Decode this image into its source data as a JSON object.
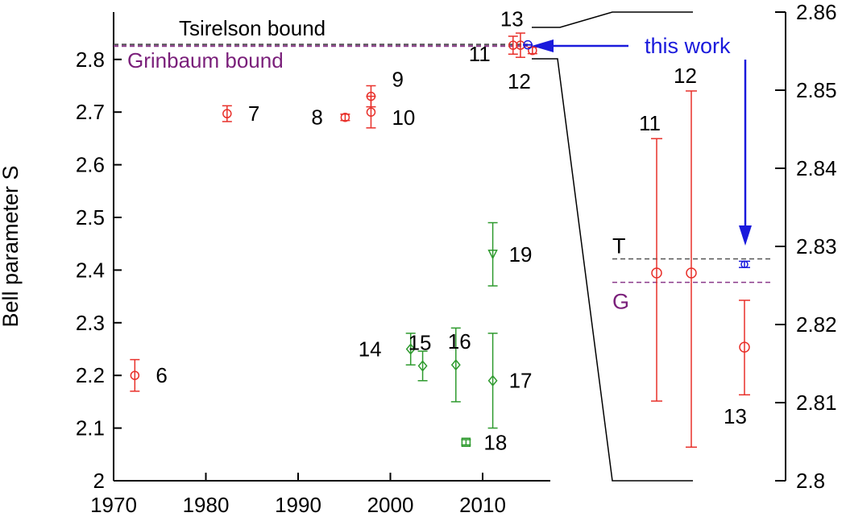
{
  "chart_data": {
    "type": "scatter",
    "ylabel": "Bell parameter S",
    "main": {
      "xlim": [
        1970,
        2018.5
      ],
      "ylim": [
        2.0,
        2.89
      ],
      "xticks": [
        "1970",
        "1980",
        "1990",
        "2000",
        "2010"
      ],
      "yticks": [
        "2",
        "2.1",
        "2.2",
        "2.3",
        "2.4",
        "2.5",
        "2.6",
        "2.7",
        "2.8"
      ],
      "bounds": [
        {
          "name": "Tsirelson bound",
          "value": 2.8284,
          "color": "#555555"
        },
        {
          "name": "Grinbaum bound",
          "value": 2.8254,
          "color": "#8b3a8b"
        }
      ],
      "points": [
        {
          "label": "6",
          "x": 1972.3,
          "y": 2.2,
          "err": 0.03,
          "marker": "circle",
          "color": "#e8302a"
        },
        {
          "label": "7",
          "x": 1982.3,
          "y": 2.697,
          "err": 0.015,
          "marker": "circle",
          "color": "#e8302a"
        },
        {
          "label": "8",
          "x": 1995.1,
          "y": 2.69,
          "err": 0.006,
          "marker": "circle",
          "color": "#e8302a"
        },
        {
          "label": "9",
          "x": 1997.9,
          "y": 2.73,
          "err": 0.02,
          "marker": "circle",
          "color": "#e8302a"
        },
        {
          "label": "10",
          "x": 1997.9,
          "y": 2.7,
          "err": 0.03,
          "marker": "circle",
          "color": "#e8302a"
        },
        {
          "label": "11",
          "x": 2013.3,
          "y": 2.827,
          "err": 0.017,
          "marker": "circle",
          "color": "#e8302a"
        },
        {
          "label": "12",
          "x": 2014.1,
          "y": 2.827,
          "err": 0.023,
          "marker": "circle",
          "color": "#e8302a"
        },
        {
          "label": "13",
          "x": 2015.4,
          "y": 2.817,
          "err": 0.006,
          "marker": "circle",
          "color": "#e8302a"
        },
        {
          "label": "this work",
          "x": 2014.9,
          "y": 2.8277,
          "err": 0.0004,
          "marker": "circle",
          "color": "#1a1adc"
        },
        {
          "label": "14",
          "x": 2002.2,
          "y": 2.25,
          "err": 0.03,
          "marker": "diamond",
          "color": "#2e9a2e"
        },
        {
          "label": "15",
          "x": 2003.5,
          "y": 2.218,
          "err": 0.028,
          "marker": "diamond",
          "color": "#2e9a2e"
        },
        {
          "label": "16",
          "x": 2007.1,
          "y": 2.22,
          "err": 0.07,
          "marker": "diamond",
          "color": "#2e9a2e"
        },
        {
          "label": "17",
          "x": 2011.1,
          "y": 2.19,
          "err": 0.09,
          "marker": "diamond",
          "color": "#2e9a2e"
        },
        {
          "label": "18",
          "x": 2008.2,
          "y": 2.073,
          "err": 0.005,
          "marker": "square",
          "color": "#2e9a2e"
        },
        {
          "label": "19",
          "x": 2011.1,
          "y": 2.43,
          "err": 0.06,
          "marker": "triangle-down",
          "color": "#2e9a2e"
        }
      ]
    },
    "inset": {
      "ylim": [
        2.8,
        2.86
      ],
      "yticks": [
        "2.8",
        "2.81",
        "2.82",
        "2.83",
        "2.84",
        "2.85",
        "2.86"
      ],
      "bound_labels": [
        "T",
        "G"
      ],
      "points": [
        {
          "label": "11",
          "y": 2.8266,
          "lo": 2.8102,
          "hi": 2.8438,
          "color": "#e8302a"
        },
        {
          "label": "12",
          "y": 2.8266,
          "lo": 2.8043,
          "hi": 2.8499,
          "color": "#e8302a"
        },
        {
          "label": "13",
          "y": 2.8171,
          "lo": 2.811,
          "hi": 2.8231,
          "color": "#e8302a"
        },
        {
          "label": "this work",
          "y": 2.8277,
          "lo": 2.8273,
          "hi": 2.8281,
          "color": "#1a1adc"
        }
      ]
    },
    "annotation": "this work"
  }
}
